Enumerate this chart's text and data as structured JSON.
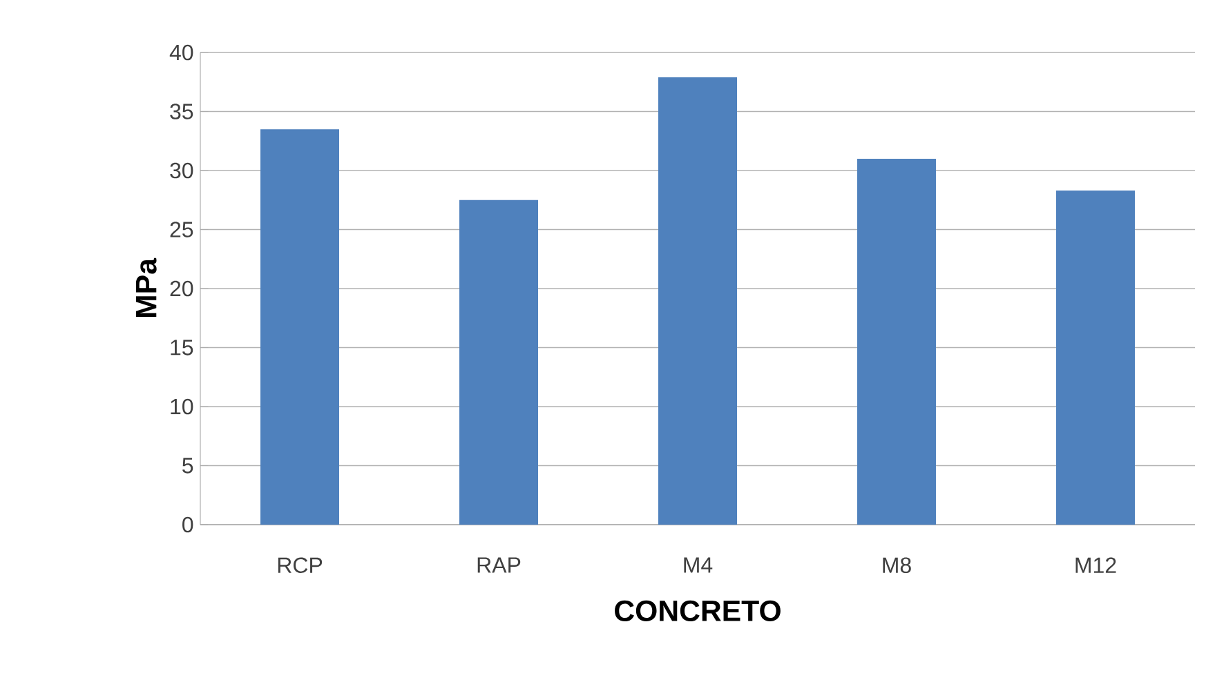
{
  "chart_data": {
    "type": "bar",
    "xlabel": "CONCRETO",
    "ylabel": "MPa",
    "categories": [
      "RCP",
      "RAP",
      "M4",
      "M8",
      "M12"
    ],
    "values": [
      33.5,
      27.5,
      37.9,
      31.0,
      28.3
    ],
    "color": "#4f81bd",
    "ylim": [
      0,
      40
    ],
    "yticks": [
      0,
      5,
      10,
      15,
      20,
      25,
      30,
      35,
      40
    ],
    "grid": "y"
  }
}
